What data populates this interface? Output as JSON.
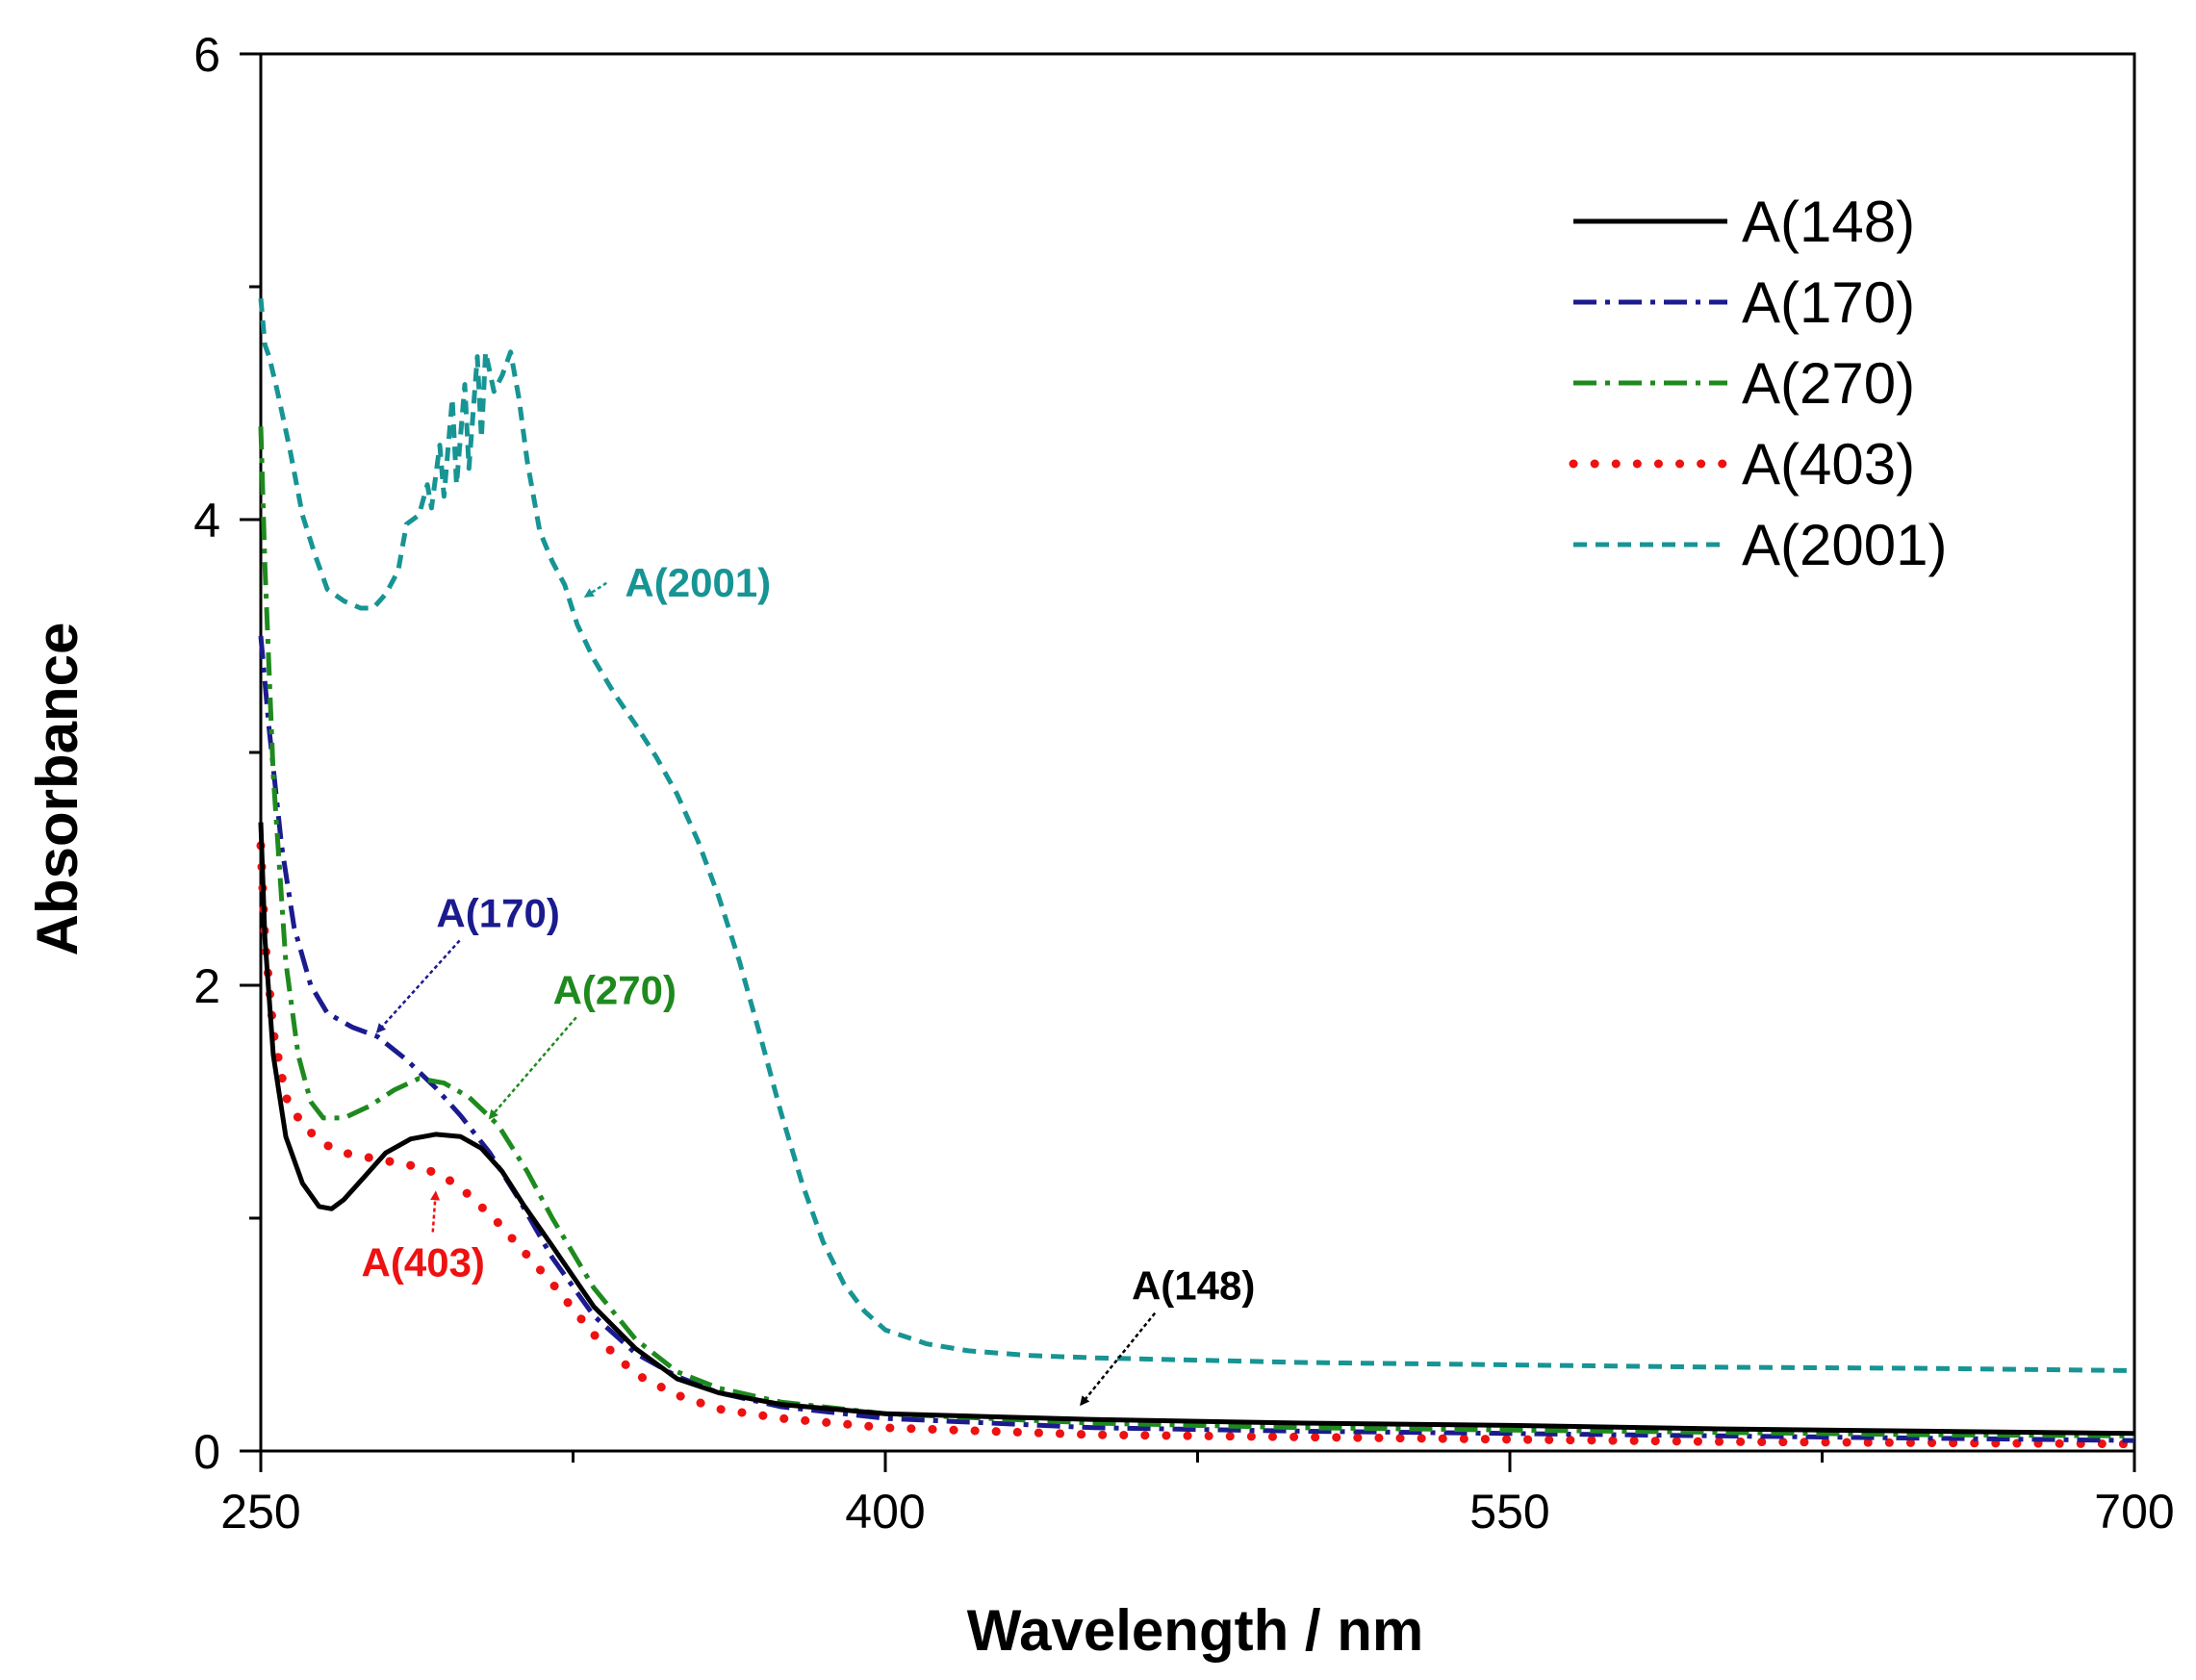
{
  "chart_data": {
    "type": "line",
    "xlabel": "Wavelength / nm",
    "ylabel": "Absorbance",
    "xlim": [
      250,
      700
    ],
    "ylim": [
      0,
      6
    ],
    "x_ticks": [
      250,
      400,
      550,
      700
    ],
    "x_minor_ticks": [
      325,
      475,
      625
    ],
    "y_ticks": [
      0,
      2,
      4,
      6
    ],
    "y_minor_ticks": [
      1,
      3,
      5
    ],
    "grid": false,
    "legend_position": "top-right",
    "series": [
      {
        "name": "A(148)",
        "color": "#000000",
        "dash": "solid",
        "points": [
          [
            250,
            2.7
          ],
          [
            251,
            2.2
          ],
          [
            253,
            1.7
          ],
          [
            256,
            1.35
          ],
          [
            260,
            1.15
          ],
          [
            264,
            1.05
          ],
          [
            267,
            1.04
          ],
          [
            270,
            1.08
          ],
          [
            275,
            1.18
          ],
          [
            280,
            1.28
          ],
          [
            286,
            1.34
          ],
          [
            292,
            1.36
          ],
          [
            298,
            1.35
          ],
          [
            303,
            1.3
          ],
          [
            308,
            1.2
          ],
          [
            313,
            1.06
          ],
          [
            320,
            0.88
          ],
          [
            330,
            0.62
          ],
          [
            340,
            0.44
          ],
          [
            350,
            0.31
          ],
          [
            360,
            0.25
          ],
          [
            375,
            0.2
          ],
          [
            400,
            0.16
          ],
          [
            450,
            0.135
          ],
          [
            500,
            0.12
          ],
          [
            550,
            0.11
          ],
          [
            600,
            0.095
          ],
          [
            650,
            0.085
          ],
          [
            700,
            0.075
          ]
        ]
      },
      {
        "name": "A(170)",
        "color": "#1b1b8f",
        "dash": "dashdot",
        "points": [
          [
            250,
            3.5
          ],
          [
            252,
            3.1
          ],
          [
            255,
            2.6
          ],
          [
            258,
            2.25
          ],
          [
            262,
            2.0
          ],
          [
            266,
            1.88
          ],
          [
            272,
            1.82
          ],
          [
            278,
            1.78
          ],
          [
            285,
            1.68
          ],
          [
            292,
            1.56
          ],
          [
            298,
            1.44
          ],
          [
            305,
            1.28
          ],
          [
            312,
            1.08
          ],
          [
            320,
            0.83
          ],
          [
            330,
            0.58
          ],
          [
            340,
            0.42
          ],
          [
            350,
            0.32
          ],
          [
            360,
            0.25
          ],
          [
            375,
            0.19
          ],
          [
            400,
            0.14
          ],
          [
            450,
            0.1
          ],
          [
            500,
            0.085
          ],
          [
            550,
            0.075
          ],
          [
            600,
            0.065
          ],
          [
            650,
            0.055
          ],
          [
            700,
            0.045
          ]
        ]
      },
      {
        "name": "A(270)",
        "color": "#1e8a1e",
        "dash": "dashdot",
        "points": [
          [
            250,
            4.4
          ],
          [
            251,
            3.8
          ],
          [
            253,
            2.9
          ],
          [
            256,
            2.1
          ],
          [
            259,
            1.7
          ],
          [
            262,
            1.5
          ],
          [
            265,
            1.43
          ],
          [
            270,
            1.43
          ],
          [
            276,
            1.48
          ],
          [
            282,
            1.55
          ],
          [
            288,
            1.6
          ],
          [
            294,
            1.58
          ],
          [
            300,
            1.52
          ],
          [
            307,
            1.4
          ],
          [
            314,
            1.2
          ],
          [
            320,
            1.0
          ],
          [
            330,
            0.7
          ],
          [
            340,
            0.48
          ],
          [
            350,
            0.34
          ],
          [
            360,
            0.27
          ],
          [
            375,
            0.21
          ],
          [
            400,
            0.16
          ],
          [
            450,
            0.12
          ],
          [
            500,
            0.1
          ],
          [
            550,
            0.09
          ],
          [
            600,
            0.08
          ],
          [
            650,
            0.07
          ],
          [
            700,
            0.065
          ]
        ]
      },
      {
        "name": "A(403)",
        "color": "#ee1111",
        "dash": "dotted",
        "points": [
          [
            250,
            2.6
          ],
          [
            251,
            2.2
          ],
          [
            253,
            1.8
          ],
          [
            256,
            1.52
          ],
          [
            260,
            1.4
          ],
          [
            265,
            1.32
          ],
          [
            270,
            1.28
          ],
          [
            276,
            1.26
          ],
          [
            282,
            1.24
          ],
          [
            288,
            1.22
          ],
          [
            294,
            1.18
          ],
          [
            300,
            1.1
          ],
          [
            307,
            0.98
          ],
          [
            314,
            0.84
          ],
          [
            320,
            0.72
          ],
          [
            330,
            0.5
          ],
          [
            340,
            0.33
          ],
          [
            350,
            0.24
          ],
          [
            360,
            0.18
          ],
          [
            375,
            0.14
          ],
          [
            400,
            0.1
          ],
          [
            450,
            0.07
          ],
          [
            500,
            0.06
          ],
          [
            550,
            0.05
          ],
          [
            600,
            0.04
          ],
          [
            650,
            0.035
          ],
          [
            700,
            0.03
          ]
        ]
      },
      {
        "name": "A(2001)",
        "color": "#179494",
        "dash": "dashed",
        "points": [
          [
            250,
            4.95
          ],
          [
            251,
            4.75
          ],
          [
            252,
            4.7
          ],
          [
            254,
            4.55
          ],
          [
            257,
            4.3
          ],
          [
            260,
            4.02
          ],
          [
            263,
            3.85
          ],
          [
            266,
            3.7
          ],
          [
            270,
            3.65
          ],
          [
            274,
            3.62
          ],
          [
            277,
            3.62
          ],
          [
            280,
            3.68
          ],
          [
            283,
            3.78
          ],
          [
            285,
            3.98
          ],
          [
            288,
            4.02
          ],
          [
            290,
            4.15
          ],
          [
            291,
            4.05
          ],
          [
            293,
            4.32
          ],
          [
            294,
            4.1
          ],
          [
            296,
            4.52
          ],
          [
            297,
            4.15
          ],
          [
            299,
            4.58
          ],
          [
            300,
            4.22
          ],
          [
            302,
            4.7
          ],
          [
            303,
            4.35
          ],
          [
            304,
            4.72
          ],
          [
            306,
            4.55
          ],
          [
            308,
            4.62
          ],
          [
            310,
            4.72
          ],
          [
            312,
            4.52
          ],
          [
            314,
            4.25
          ],
          [
            317,
            3.95
          ],
          [
            320,
            3.82
          ],
          [
            323,
            3.72
          ],
          [
            326,
            3.55
          ],
          [
            330,
            3.4
          ],
          [
            335,
            3.25
          ],
          [
            340,
            3.12
          ],
          [
            345,
            2.98
          ],
          [
            350,
            2.82
          ],
          [
            355,
            2.62
          ],
          [
            360,
            2.38
          ],
          [
            365,
            2.1
          ],
          [
            370,
            1.78
          ],
          [
            375,
            1.45
          ],
          [
            380,
            1.15
          ],
          [
            385,
            0.9
          ],
          [
            390,
            0.72
          ],
          [
            395,
            0.6
          ],
          [
            400,
            0.52
          ],
          [
            410,
            0.46
          ],
          [
            420,
            0.43
          ],
          [
            435,
            0.41
          ],
          [
            450,
            0.4
          ],
          [
            500,
            0.38
          ],
          [
            550,
            0.37
          ],
          [
            600,
            0.36
          ],
          [
            650,
            0.355
          ],
          [
            700,
            0.345
          ]
        ]
      }
    ],
    "annotations": [
      {
        "text": "A(2001)",
        "series": "A(2001)",
        "text_at": [
          355,
          3.67
        ],
        "arrow_to": [
          328,
          3.67
        ]
      },
      {
        "text": "A(170)",
        "series": "A(170)",
        "text_at": [
          307,
          2.25
        ],
        "arrow_to": [
          278,
          1.8
        ]
      },
      {
        "text": "A(270)",
        "series": "A(270)",
        "text_at": [
          335,
          1.92
        ],
        "arrow_to": [
          305,
          1.43
        ]
      },
      {
        "text": "A(403)",
        "series": "A(403)",
        "text_at": [
          289,
          0.75
        ],
        "arrow_to": [
          292,
          1.11
        ]
      },
      {
        "text": "A(148)",
        "series": "A(148)",
        "text_at": [
          474,
          0.65
        ],
        "arrow_to": [
          447,
          0.2
        ]
      }
    ]
  }
}
